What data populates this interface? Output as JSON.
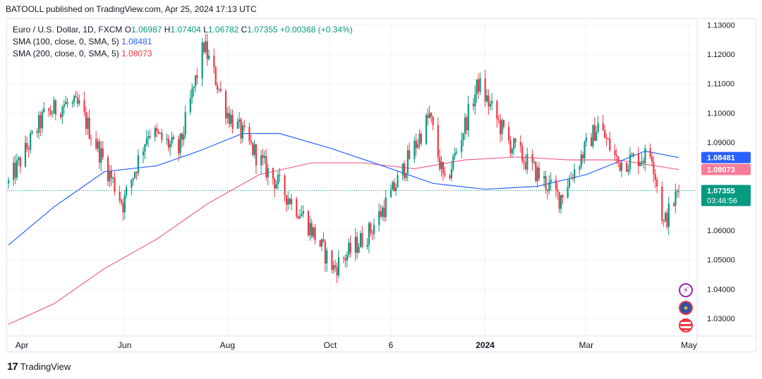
{
  "publisher": "BATOOLL published on TradingView.com, Apr 25, 2024 17:13 UTC",
  "legend": {
    "symbol": "Euro / U.S. Dollar, 1D, FXCM",
    "o_label": "O",
    "o": "1.06987",
    "h_label": "H",
    "h": "1.07404",
    "l_label": "L",
    "l": "1.06782",
    "c_label": "C",
    "c": "1.07355",
    "change": "+0.00368 (+0.34%)",
    "sma100_label": "SMA (100, close, 0, SMA, 5)",
    "sma100_value": "1.08481",
    "sma200_label": "SMA (200, close, 0, SMA, 5)",
    "sma200_value": "1.08073"
  },
  "price_badges": {
    "sma100": "1.08481",
    "sma200": "1.08073",
    "last": "1.07355",
    "countdown": "03:46:56"
  },
  "footer": {
    "logo": "17",
    "brand": "TradingView"
  },
  "icons": [
    "lightning-icon",
    "eu-flag-icon",
    "us-flag-icon"
  ],
  "colors": {
    "up": "#089981",
    "down": "#f23645",
    "sma100": "#2962ff",
    "sma200": "#f06292",
    "last_badge": "#089981",
    "sma100_badge": "#2962ff",
    "sma200_badge": "#f77c99"
  },
  "chart_data": {
    "type": "candlestick",
    "title": "Euro / U.S. Dollar, 1D, FXCM",
    "x_ticks": [
      "Apr",
      "Jun",
      "Aug",
      "Oct",
      "6",
      "2024",
      "Mar",
      "May"
    ],
    "y_ticks": [
      "1.13000",
      "1.12000",
      "1.11000",
      "1.10000",
      "1.09000",
      "1.06000",
      "1.05000",
      "1.04000",
      "1.03000"
    ],
    "ylim": [
      1.024,
      1.132
    ],
    "grid": true,
    "close_path": [
      {
        "d": "2023-03-24",
        "v": 1.076
      },
      {
        "d": "2023-04-14",
        "v": 1.099
      },
      {
        "d": "2023-04-26",
        "v": 1.103
      },
      {
        "d": "2023-05-05",
        "v": 1.102
      },
      {
        "d": "2023-05-31",
        "v": 1.069
      },
      {
        "d": "2023-06-15",
        "v": 1.094
      },
      {
        "d": "2023-07-03",
        "v": 1.087
      },
      {
        "d": "2023-07-18",
        "v": 1.123
      },
      {
        "d": "2023-08-01",
        "v": 1.1
      },
      {
        "d": "2023-08-25",
        "v": 1.08
      },
      {
        "d": "2023-09-15",
        "v": 1.065
      },
      {
        "d": "2023-10-03",
        "v": 1.047
      },
      {
        "d": "2023-10-25",
        "v": 1.06
      },
      {
        "d": "2023-11-06",
        "v": 1.072
      },
      {
        "d": "2023-11-29",
        "v": 1.099
      },
      {
        "d": "2023-12-08",
        "v": 1.075
      },
      {
        "d": "2023-12-28",
        "v": 1.11
      },
      {
        "d": "2024-01-15",
        "v": 1.09
      },
      {
        "d": "2024-02-14",
        "v": 1.071
      },
      {
        "d": "2024-03-08",
        "v": 1.096
      },
      {
        "d": "2024-03-20",
        "v": 1.083
      },
      {
        "d": "2024-04-09",
        "v": 1.086
      },
      {
        "d": "2024-04-16",
        "v": 1.062
      },
      {
        "d": "2024-04-25",
        "v": 1.0736
      }
    ],
    "series": [
      {
        "name": "SMA (100, close, 0, SMA, 5)",
        "color": "#2962ff",
        "points": [
          {
            "d": "2023-03-24",
            "v": 1.055
          },
          {
            "d": "2023-04-20",
            "v": 1.068
          },
          {
            "d": "2023-05-20",
            "v": 1.08
          },
          {
            "d": "2023-06-20",
            "v": 1.082
          },
          {
            "d": "2023-07-15",
            "v": 1.087
          },
          {
            "d": "2023-08-10",
            "v": 1.093
          },
          {
            "d": "2023-09-01",
            "v": 1.093
          },
          {
            "d": "2023-10-01",
            "v": 1.088
          },
          {
            "d": "2023-11-01",
            "v": 1.082
          },
          {
            "d": "2023-12-01",
            "v": 1.076
          },
          {
            "d": "2024-01-01",
            "v": 1.074
          },
          {
            "d": "2024-02-01",
            "v": 1.075
          },
          {
            "d": "2024-03-01",
            "v": 1.079
          },
          {
            "d": "2024-04-05",
            "v": 1.087
          },
          {
            "d": "2024-04-25",
            "v": 1.0848
          }
        ]
      },
      {
        "name": "SMA (200, close, 0, SMA, 5)",
        "color": "#f06292",
        "points": [
          {
            "d": "2023-03-24",
            "v": 1.028
          },
          {
            "d": "2023-04-20",
            "v": 1.035
          },
          {
            "d": "2023-05-20",
            "v": 1.047
          },
          {
            "d": "2023-06-20",
            "v": 1.057
          },
          {
            "d": "2023-07-20",
            "v": 1.069
          },
          {
            "d": "2023-08-20",
            "v": 1.079
          },
          {
            "d": "2023-09-20",
            "v": 1.083
          },
          {
            "d": "2023-10-20",
            "v": 1.083
          },
          {
            "d": "2023-11-20",
            "v": 1.081
          },
          {
            "d": "2023-12-20",
            "v": 1.084
          },
          {
            "d": "2024-01-20",
            "v": 1.085
          },
          {
            "d": "2024-02-20",
            "v": 1.084
          },
          {
            "d": "2024-03-20",
            "v": 1.084
          },
          {
            "d": "2024-04-25",
            "v": 1.0807
          }
        ]
      }
    ]
  }
}
